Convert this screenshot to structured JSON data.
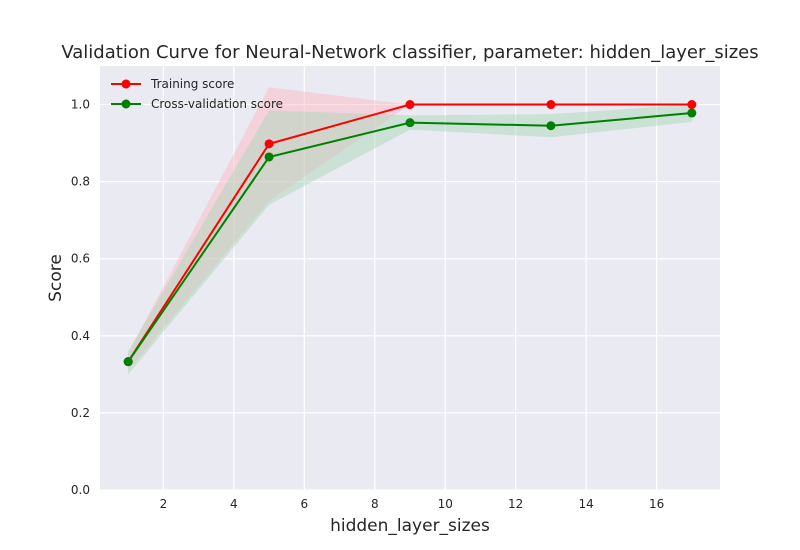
{
  "chart_data": {
    "type": "line",
    "title": "Validation Curve for Neural-Network classifier, parameter: hidden_layer_sizes",
    "xlabel": "hidden_layer_sizes",
    "ylabel": "Score",
    "x": [
      1,
      5,
      9,
      13,
      17
    ],
    "xlim": [
      0.2,
      17.8
    ],
    "ylim": [
      0.0,
      1.1
    ],
    "xticks": [
      2,
      4,
      6,
      8,
      10,
      12,
      14,
      16
    ],
    "yticks": [
      0.0,
      0.2,
      0.4,
      0.6,
      0.8,
      1.0
    ],
    "grid": true,
    "legend_position": "top-left",
    "background": "#eaeaf2",
    "series": [
      {
        "name": "Training score",
        "color": "#ff0000",
        "fill_color": "#ffb6c1",
        "values": [
          0.333,
          0.898,
          1.0,
          1.0,
          1.0
        ],
        "band_lower": [
          0.31,
          0.75,
          1.0,
          1.0,
          1.0
        ],
        "band_upper": [
          0.355,
          1.045,
          1.0,
          1.0,
          1.0
        ]
      },
      {
        "name": "Cross-validation score",
        "color": "#008000",
        "fill_color": "#a8d8b4",
        "values": [
          0.333,
          0.864,
          0.953,
          0.945,
          0.978
        ],
        "band_lower": [
          0.3,
          0.74,
          0.935,
          0.915,
          0.955
        ],
        "band_upper": [
          0.36,
          0.985,
          0.972,
          0.975,
          1.0
        ]
      }
    ]
  }
}
